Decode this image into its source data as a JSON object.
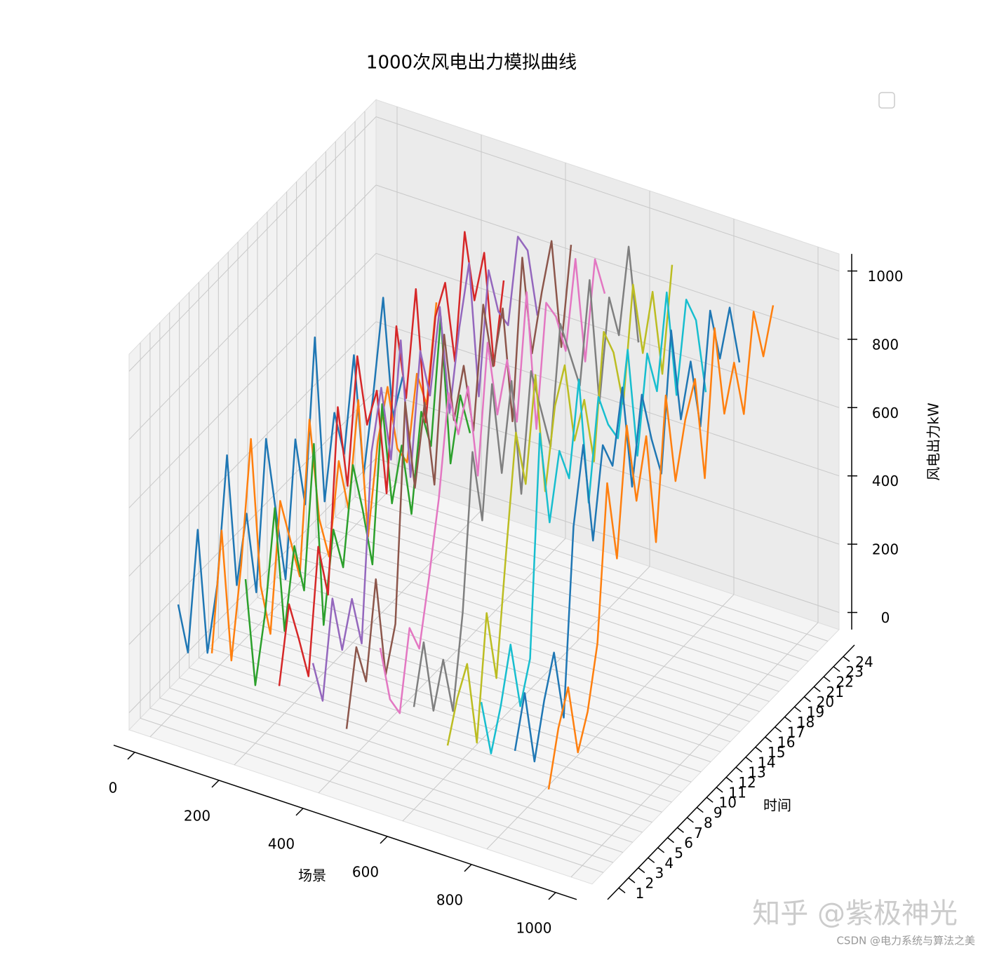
{
  "chart_data": {
    "type": "line3d",
    "title": "1000次风电出力模拟曲线",
    "xlabel": "场景",
    "ylabel": "时间",
    "zlabel": "风电出力kW",
    "xlim": [
      0,
      1000
    ],
    "xticks": [
      0,
      200,
      400,
      600,
      800,
      1000
    ],
    "ylim": [
      1,
      24
    ],
    "yticks": [
      1,
      2,
      3,
      4,
      5,
      6,
      7,
      8,
      9,
      10,
      11,
      12,
      13,
      14,
      15,
      16,
      17,
      18,
      19,
      20,
      21,
      22,
      23,
      24
    ],
    "zlim": [
      0,
      1000
    ],
    "zticks": [
      0,
      200,
      400,
      600,
      800,
      1000
    ],
    "grid": true,
    "legend": "upper right",
    "series": [
      {
        "scene": 40,
        "color": "#1f77b4",
        "values": [
          320,
          150,
          480,
          90,
          260,
          610,
          200,
          380,
          120,
          540,
          300,
          70,
          450,
          230,
          690,
          180,
          410,
          260,
          520,
          140,
          350,
          600,
          220,
          310
        ]
      },
      {
        "scene": 120,
        "color": "#ff7f0e",
        "values": [
          210,
          540,
          130,
          380,
          720,
          260,
          90,
          450,
          310,
          170,
          600,
          280,
          140,
          390,
          220,
          510,
          80,
          330,
          460,
          250,
          180,
          410,
          290,
          560
        ]
      },
      {
        "scene": 200,
        "color": "#2ca02c",
        "values": [
          460,
          120,
          300,
          580,
          190,
          410,
          250,
          650,
          90,
          340,
          200,
          470,
          310,
          120,
          560,
          240,
          380,
          150,
          420,
          290,
          640,
          180,
          350,
          210
        ]
      },
      {
        "scene": 280,
        "color": "#d62728",
        "values": [
          180,
          390,
          260,
          120,
          470,
          300,
          820,
          560,
          910,
          680,
          750,
          420,
          880,
          640,
          930,
          510,
          790,
          860,
          600,
          950,
          720,
          830,
          470,
          690
        ]
      },
      {
        "scene": 360,
        "color": "#9467bd",
        "values": [
          280,
          140,
          410,
          230,
          350,
          190,
          720,
          880,
          640,
          960,
          530,
          870,
          710,
          940,
          600,
          820,
          980,
          560,
          900,
          750,
          680,
          910,
          840,
          620
        ]
      },
      {
        "scene": 440,
        "color": "#8c564b",
        "values": [
          120,
          330,
          200,
          470,
          160,
          280,
          900,
          620,
          840,
          570,
          980,
          700,
          830,
          610,
          950,
          740,
          880,
          520,
          970,
          660,
          810,
          930,
          590,
          860
        ]
      },
      {
        "scene": 520,
        "color": "#e377c2",
        "values": [
          390,
          210,
          140,
          360,
          270,
          450,
          650,
          930,
          780,
          890,
          600,
          960,
          720,
          850,
          640,
          990,
          560,
          900,
          830,
          700,
          940,
          610,
          880,
          750
        ]
      },
      {
        "scene": 600,
        "color": "#7f7f7f",
        "values": [
          250,
          410,
          180,
          300,
          120,
          380,
          820,
          590,
          960,
          670,
          910,
          550,
          880,
          740,
          600,
          930,
          810,
          690,
          970,
          580,
          860,
          720,
          950,
          640
        ]
      },
      {
        "scene": 680,
        "color": "#bcbd22",
        "values": [
          170,
          280,
          350,
          90,
          440,
          220,
          560,
          880,
          700,
          990,
          620,
          840,
          930,
          680,
          770,
          560,
          910,
          820,
          640,
          960,
          730,
          880,
          610,
          900
        ]
      },
      {
        "scene": 760,
        "color": "#17becf",
        "values": [
          330,
          150,
          260,
          410,
          200,
          310,
          940,
          650,
          830,
          720,
          980,
          590,
          870,
          760,
          690,
          920,
          580,
          850,
          710,
          970,
          640,
          890,
          800,
          560
        ]
      },
      {
        "scene": 840,
        "color": "#1f77b4",
        "values": [
          220,
          360,
          130,
          280,
          390,
          170,
          700,
          910,
          600,
          850,
          760,
          960,
          640,
          880,
          720,
          590,
          980,
          690,
          830,
          610,
          920,
          750,
          870,
          680
        ]
      },
      {
        "scene": 920,
        "color": "#ff7f0e",
        "values": [
          140,
          290,
          380,
          160,
          250,
          420,
          860,
          610,
          970,
          720,
          880,
          540,
          940,
          660,
          810,
          900,
          580,
          990,
          710,
          830,
          650,
          920,
          760,
          880
        ]
      }
    ]
  },
  "watermarks": [
    "知乎 @紫极神光",
    "CSDN @电力系统与算法之美"
  ]
}
